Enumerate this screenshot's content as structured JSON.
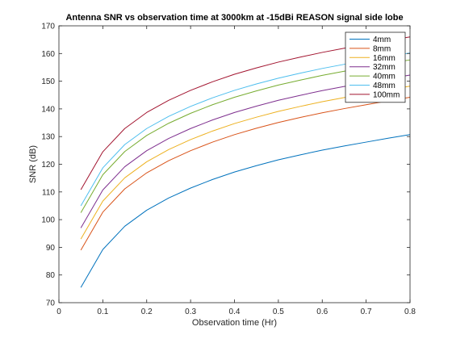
{
  "chart_data": {
    "type": "line",
    "title": "Antenna SNR vs observation time at 3000km at -15dBi REASON signal side lobe",
    "xlabel": "Observation time (Hr)",
    "ylabel": "SNR (dB)",
    "xlim": [
      0,
      0.8
    ],
    "ylim": [
      70,
      170
    ],
    "xticks": [
      0,
      0.1,
      0.2,
      0.3,
      0.4,
      0.5,
      0.6,
      0.7,
      0.8
    ],
    "yticks": [
      70,
      80,
      90,
      100,
      110,
      120,
      130,
      140,
      150,
      160,
      170
    ],
    "grid": false,
    "legend_position": "top-right",
    "x": [
      0.05,
      0.1,
      0.15,
      0.2,
      0.25,
      0.3,
      0.35,
      0.4,
      0.45,
      0.5,
      0.55,
      0.6,
      0.65,
      0.7,
      0.75,
      0.8
    ],
    "series": [
      {
        "name": "4mm",
        "color": "#0072BD",
        "values": [
          75.5,
          89.2,
          97.6,
          103.4,
          107.8,
          111.4,
          114.5,
          117.2,
          119.5,
          121.6,
          123.4,
          125.1,
          126.6,
          128.0,
          129.4,
          130.7
        ]
      },
      {
        "name": "8mm",
        "color": "#D95319",
        "values": [
          89.0,
          102.7,
          111.1,
          116.9,
          121.3,
          124.9,
          128.0,
          130.7,
          133.0,
          135.1,
          136.9,
          138.6,
          140.1,
          141.5,
          142.9,
          144.2
        ]
      },
      {
        "name": "16mm",
        "color": "#EDB120",
        "values": [
          93.0,
          106.7,
          115.1,
          120.9,
          125.3,
          128.9,
          132.0,
          134.7,
          137.0,
          139.1,
          140.9,
          142.6,
          144.1,
          145.5,
          146.9,
          148.2
        ]
      },
      {
        "name": "32mm",
        "color": "#7E2F8E",
        "values": [
          97.0,
          110.7,
          119.1,
          124.9,
          129.3,
          132.9,
          136.0,
          138.7,
          141.0,
          143.1,
          144.9,
          146.6,
          148.1,
          149.5,
          150.9,
          152.2
        ]
      },
      {
        "name": "40mm",
        "color": "#77AC30",
        "values": [
          102.5,
          116.2,
          124.6,
          130.4,
          134.8,
          138.4,
          141.5,
          144.2,
          146.5,
          148.6,
          150.4,
          152.1,
          153.6,
          155.0,
          156.4,
          157.7
        ]
      },
      {
        "name": "48mm",
        "color": "#4DBEEE",
        "values": [
          105.0,
          118.7,
          127.1,
          132.9,
          137.3,
          140.9,
          144.0,
          146.7,
          149.0,
          151.1,
          152.9,
          154.6,
          156.1,
          157.5,
          158.9,
          160.2
        ]
      },
      {
        "name": "100mm",
        "color": "#A2142F",
        "values": [
          110.8,
          124.5,
          132.9,
          138.7,
          143.1,
          146.7,
          149.8,
          152.5,
          154.8,
          156.9,
          158.7,
          160.4,
          161.9,
          163.3,
          164.7,
          166.0
        ]
      }
    ]
  }
}
